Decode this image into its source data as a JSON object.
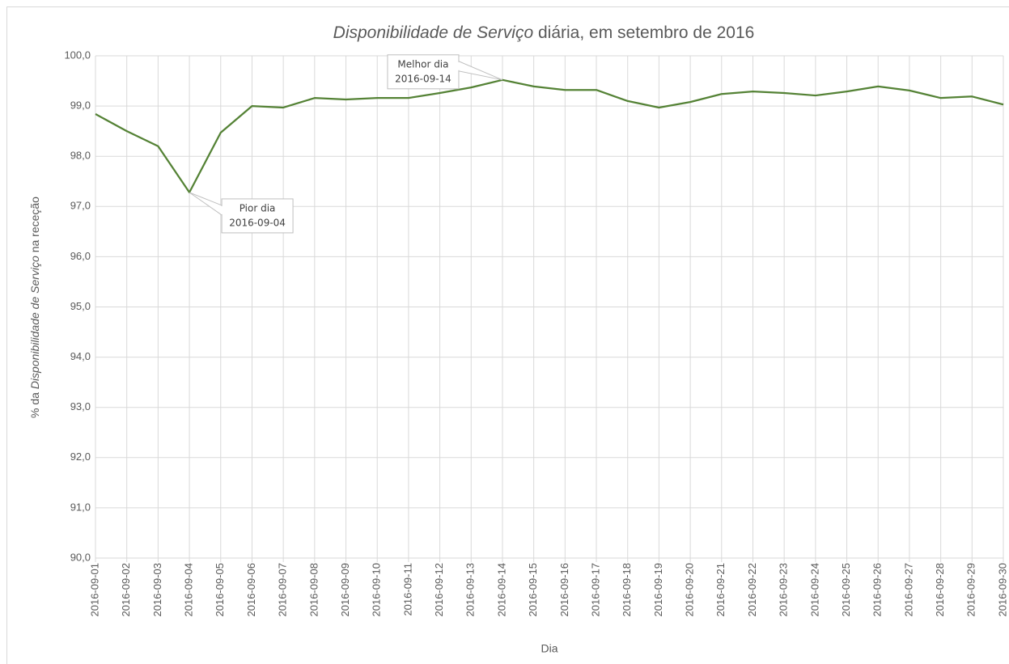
{
  "chart_data": {
    "type": "line",
    "title": [
      "Disponibilidade de Serviço",
      "diária, em setembro de 2016"
    ],
    "y_label": [
      "% da",
      "Disponibilidade de Serviço",
      "na receção"
    ],
    "x_label": "Dia",
    "categories": [
      "2016-09-01",
      "2016-09-02",
      "2016-09-03",
      "2016-09-04",
      "2016-09-05",
      "2016-09-06",
      "2016-09-07",
      "2016-09-08",
      "2016-09-09",
      "2016-09-10",
      "2016-09-11",
      "2016-09-12",
      "2016-09-13",
      "2016-09-14",
      "2016-09-15",
      "2016-09-16",
      "2016-09-17",
      "2016-09-18",
      "2016-09-19",
      "2016-09-20",
      "2016-09-21",
      "2016-09-22",
      "2016-09-23",
      "2016-09-24",
      "2016-09-25",
      "2016-09-26",
      "2016-09-27",
      "2016-09-28",
      "2016-09-29",
      "2016-09-30"
    ],
    "values": [
      98.84,
      98.5,
      98.2,
      97.28,
      98.47,
      99.0,
      98.97,
      99.16,
      99.13,
      99.16,
      99.16,
      99.26,
      99.37,
      99.52,
      99.39,
      99.32,
      99.32,
      99.1,
      98.97,
      99.08,
      99.24,
      99.29,
      99.26,
      99.21,
      99.29,
      99.39,
      99.31,
      99.16,
      99.19,
      99.03
    ],
    "color": "#548235",
    "ylim": [
      90,
      100
    ],
    "yticks": [
      {
        "value": 90,
        "label": "90,0"
      },
      {
        "value": 91,
        "label": "91,0"
      },
      {
        "value": 92,
        "label": "92,0"
      },
      {
        "value": 93,
        "label": "93,0"
      },
      {
        "value": 94,
        "label": "94,0"
      },
      {
        "value": 95,
        "label": "95,0"
      },
      {
        "value": 96,
        "label": "96,0"
      },
      {
        "value": 97,
        "label": "97,0"
      },
      {
        "value": 98,
        "label": "98,0"
      },
      {
        "value": 99,
        "label": "99,0"
      },
      {
        "value": 100,
        "label": "100,0"
      }
    ],
    "grid": true,
    "annotations": [
      {
        "lines": [
          "Pior dia",
          "2016-09-04"
        ]
      },
      {
        "lines": [
          "Melhor dia",
          "2016-09-14"
        ]
      }
    ]
  }
}
